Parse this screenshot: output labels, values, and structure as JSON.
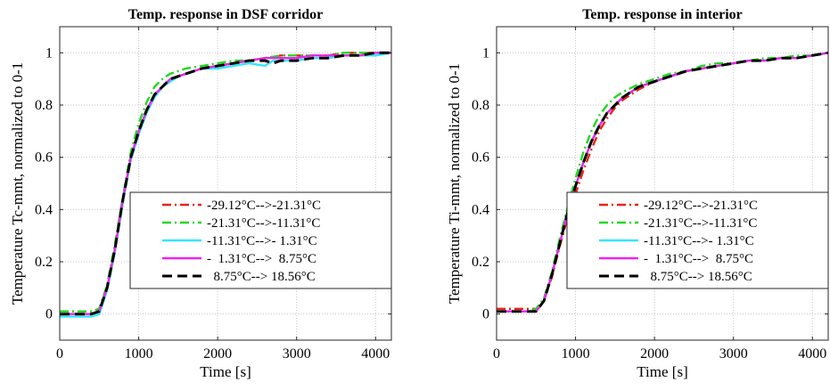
{
  "chart_data": [
    {
      "type": "line",
      "title": "Temp. response in DSF corridor",
      "xlabel": "Time [s]",
      "ylabel": "Temperature Tc-mmt, normalized to 0-1",
      "xlim": [
        0,
        4200
      ],
      "ylim": [
        -0.1,
        1.1
      ],
      "xticks": [
        0,
        1000,
        2000,
        3000,
        4000
      ],
      "yticks": [
        0,
        0.2,
        0.4,
        0.6,
        0.8,
        1
      ],
      "xtick_labels": [
        "0",
        "1000",
        "2000",
        "3000",
        "4000"
      ],
      "ytick_labels": [
        "0",
        "0.2",
        "0.4",
        "0.6",
        "0.8",
        "1"
      ],
      "grid": true,
      "legend_position": "lower-right",
      "series": [
        {
          "name": "-29.12°C-->-21.31°C",
          "color": "#e8231b",
          "style": "dashdot",
          "x": [
            0,
            200,
            400,
            500,
            600,
            700,
            800,
            900,
            1000,
            1100,
            1200,
            1300,
            1400,
            1500,
            1600,
            1800,
            2000,
            2200,
            2400,
            2600,
            2800,
            3000,
            3200,
            3400,
            3600,
            3800,
            4000,
            4200
          ],
          "y": [
            0.01,
            0.01,
            0.01,
            0.02,
            0.1,
            0.25,
            0.43,
            0.59,
            0.69,
            0.77,
            0.83,
            0.87,
            0.89,
            0.91,
            0.92,
            0.94,
            0.95,
            0.96,
            0.97,
            0.98,
            0.99,
            0.99,
            0.99,
            0.99,
            1.0,
            1.0,
            1.0,
            1.0
          ]
        },
        {
          "name": "-21.31°C-->-11.31°C",
          "color": "#22d822",
          "style": "dashdot",
          "x": [
            0,
            200,
            400,
            500,
            600,
            700,
            800,
            900,
            1000,
            1100,
            1200,
            1300,
            1400,
            1500,
            1600,
            1800,
            2000,
            2200,
            2400,
            2600,
            2800,
            3000,
            3200,
            3400,
            3600,
            3800,
            4000,
            4200
          ],
          "y": [
            0.01,
            0.01,
            0.01,
            0.02,
            0.11,
            0.27,
            0.45,
            0.62,
            0.73,
            0.81,
            0.87,
            0.9,
            0.92,
            0.93,
            0.94,
            0.95,
            0.96,
            0.97,
            0.97,
            0.98,
            0.99,
            0.99,
            0.99,
            0.99,
            1.0,
            1.0,
            1.0,
            1.0
          ]
        },
        {
          "name": "-11.31°C-->- 1.31°C",
          "color": "#33e5ff",
          "style": "solid",
          "x": [
            0,
            200,
            400,
            500,
            600,
            700,
            800,
            900,
            1000,
            1100,
            1200,
            1300,
            1400,
            1500,
            1600,
            1800,
            2000,
            2200,
            2400,
            2600,
            2700,
            2800,
            3000,
            3200,
            3400,
            3600,
            3800,
            4000,
            4200
          ],
          "y": [
            -0.01,
            -0.01,
            -0.01,
            0.0,
            0.09,
            0.24,
            0.43,
            0.59,
            0.69,
            0.77,
            0.83,
            0.87,
            0.89,
            0.91,
            0.92,
            0.94,
            0.94,
            0.95,
            0.96,
            0.95,
            0.97,
            0.97,
            0.97,
            0.98,
            0.98,
            0.99,
            0.99,
            0.99,
            1.0
          ]
        },
        {
          "name": "-  1.31°C-->  8.75°C",
          "color": "#ee22ee",
          "style": "solid",
          "x": [
            0,
            200,
            400,
            500,
            600,
            700,
            800,
            900,
            1000,
            1100,
            1200,
            1300,
            1400,
            1500,
            1600,
            1800,
            2000,
            2200,
            2400,
            2600,
            2800,
            3000,
            3200,
            3400,
            3600,
            3800,
            4000,
            4200
          ],
          "y": [
            0.0,
            0.0,
            0.0,
            0.01,
            0.1,
            0.25,
            0.44,
            0.6,
            0.7,
            0.78,
            0.84,
            0.87,
            0.9,
            0.91,
            0.92,
            0.94,
            0.95,
            0.96,
            0.97,
            0.98,
            0.98,
            0.98,
            0.99,
            0.99,
            0.99,
            0.99,
            1.0,
            1.0
          ]
        },
        {
          "name": "  8.75°C--> 18.56°C",
          "color": "#000000",
          "style": "dashed",
          "x": [
            0,
            200,
            400,
            500,
            600,
            700,
            800,
            900,
            1000,
            1100,
            1200,
            1300,
            1400,
            1500,
            1600,
            1800,
            2000,
            2200,
            2400,
            2600,
            2700,
            2800,
            3000,
            3200,
            3400,
            3600,
            3800,
            4000,
            4200
          ],
          "y": [
            0.0,
            0.0,
            0.0,
            0.01,
            0.1,
            0.25,
            0.44,
            0.6,
            0.7,
            0.78,
            0.84,
            0.87,
            0.9,
            0.91,
            0.92,
            0.94,
            0.95,
            0.96,
            0.97,
            0.97,
            0.96,
            0.97,
            0.97,
            0.98,
            0.98,
            0.99,
            0.99,
            1.0,
            1.0
          ]
        }
      ]
    },
    {
      "type": "line",
      "title": "Temp. response in interior",
      "xlabel": "Time [s]",
      "ylabel": "Temperature Ti-mmt, normalized to 0-1",
      "xlim": [
        0,
        4200
      ],
      "ylim": [
        -0.1,
        1.1
      ],
      "xticks": [
        0,
        1000,
        2000,
        3000,
        4000
      ],
      "yticks": [
        0,
        0.2,
        0.4,
        0.6,
        0.8,
        1
      ],
      "xtick_labels": [
        "0",
        "1000",
        "2000",
        "3000",
        "4000"
      ],
      "ytick_labels": [
        "0",
        "0.2",
        "0.4",
        "0.6",
        "0.8",
        "1"
      ],
      "grid": true,
      "legend_position": "lower-right",
      "series": [
        {
          "name": "-29.12°C-->-21.31°C",
          "color": "#e8231b",
          "style": "dashdot",
          "x": [
            0,
            200,
            400,
            500,
            600,
            700,
            800,
            900,
            1000,
            1100,
            1200,
            1300,
            1400,
            1500,
            1600,
            1800,
            2000,
            2200,
            2400,
            2600,
            2800,
            3000,
            3200,
            3400,
            3600,
            3800,
            4000,
            4200
          ],
          "y": [
            0.02,
            0.02,
            0.02,
            0.02,
            0.05,
            0.14,
            0.26,
            0.37,
            0.46,
            0.55,
            0.63,
            0.7,
            0.75,
            0.79,
            0.82,
            0.86,
            0.89,
            0.91,
            0.93,
            0.94,
            0.95,
            0.96,
            0.97,
            0.97,
            0.98,
            0.98,
            0.99,
            1.0
          ]
        },
        {
          "name": "-21.31°C-->-11.31°C",
          "color": "#22d822",
          "style": "dashdot",
          "x": [
            0,
            200,
            400,
            500,
            600,
            700,
            800,
            900,
            1000,
            1100,
            1200,
            1300,
            1400,
            1500,
            1600,
            1800,
            2000,
            2200,
            2400,
            2600,
            2800,
            3000,
            3200,
            3400,
            3600,
            3800,
            4000,
            4200
          ],
          "y": [
            0.01,
            0.01,
            0.01,
            0.02,
            0.06,
            0.16,
            0.29,
            0.41,
            0.52,
            0.62,
            0.7,
            0.76,
            0.8,
            0.83,
            0.85,
            0.88,
            0.9,
            0.92,
            0.93,
            0.95,
            0.96,
            0.96,
            0.97,
            0.98,
            0.98,
            0.99,
            0.99,
            1.0
          ]
        },
        {
          "name": "-11.31°C-->- 1.31°C",
          "color": "#33e5ff",
          "style": "solid",
          "x": [
            0,
            200,
            400,
            500,
            600,
            700,
            800,
            900,
            1000,
            1100,
            1200,
            1300,
            1400,
            1500,
            1600,
            1800,
            2000,
            2200,
            2400,
            2600,
            2800,
            3000,
            3200,
            3400,
            3600,
            3800,
            4000,
            4200
          ],
          "y": [
            0.01,
            0.01,
            0.01,
            0.01,
            0.05,
            0.15,
            0.27,
            0.39,
            0.49,
            0.58,
            0.66,
            0.72,
            0.77,
            0.8,
            0.83,
            0.87,
            0.89,
            0.91,
            0.93,
            0.94,
            0.95,
            0.96,
            0.97,
            0.97,
            0.98,
            0.98,
            0.99,
            1.0
          ]
        },
        {
          "name": "-  1.31°C-->  8.75°C",
          "color": "#ee22ee",
          "style": "solid",
          "x": [
            0,
            200,
            400,
            500,
            600,
            700,
            800,
            900,
            1000,
            1100,
            1200,
            1300,
            1400,
            1500,
            1600,
            1800,
            2000,
            2200,
            2400,
            2600,
            2800,
            3000,
            3200,
            3400,
            3600,
            3800,
            4000,
            4200
          ],
          "y": [
            0.01,
            0.01,
            0.01,
            0.01,
            0.05,
            0.15,
            0.27,
            0.39,
            0.49,
            0.58,
            0.66,
            0.72,
            0.77,
            0.8,
            0.83,
            0.87,
            0.89,
            0.91,
            0.93,
            0.94,
            0.95,
            0.96,
            0.97,
            0.97,
            0.98,
            0.98,
            0.99,
            1.0
          ]
        },
        {
          "name": "  8.75°C--> 18.56°C",
          "color": "#000000",
          "style": "dashed",
          "x": [
            0,
            200,
            400,
            500,
            600,
            700,
            800,
            900,
            1000,
            1100,
            1200,
            1300,
            1400,
            1500,
            1600,
            1800,
            2000,
            2200,
            2400,
            2600,
            2800,
            3000,
            3200,
            3400,
            3600,
            3800,
            4000,
            4200
          ],
          "y": [
            0.01,
            0.01,
            0.01,
            0.01,
            0.05,
            0.15,
            0.27,
            0.39,
            0.49,
            0.58,
            0.66,
            0.72,
            0.77,
            0.8,
            0.83,
            0.87,
            0.89,
            0.91,
            0.93,
            0.94,
            0.95,
            0.96,
            0.97,
            0.97,
            0.98,
            0.98,
            0.99,
            1.0
          ]
        }
      ]
    }
  ]
}
